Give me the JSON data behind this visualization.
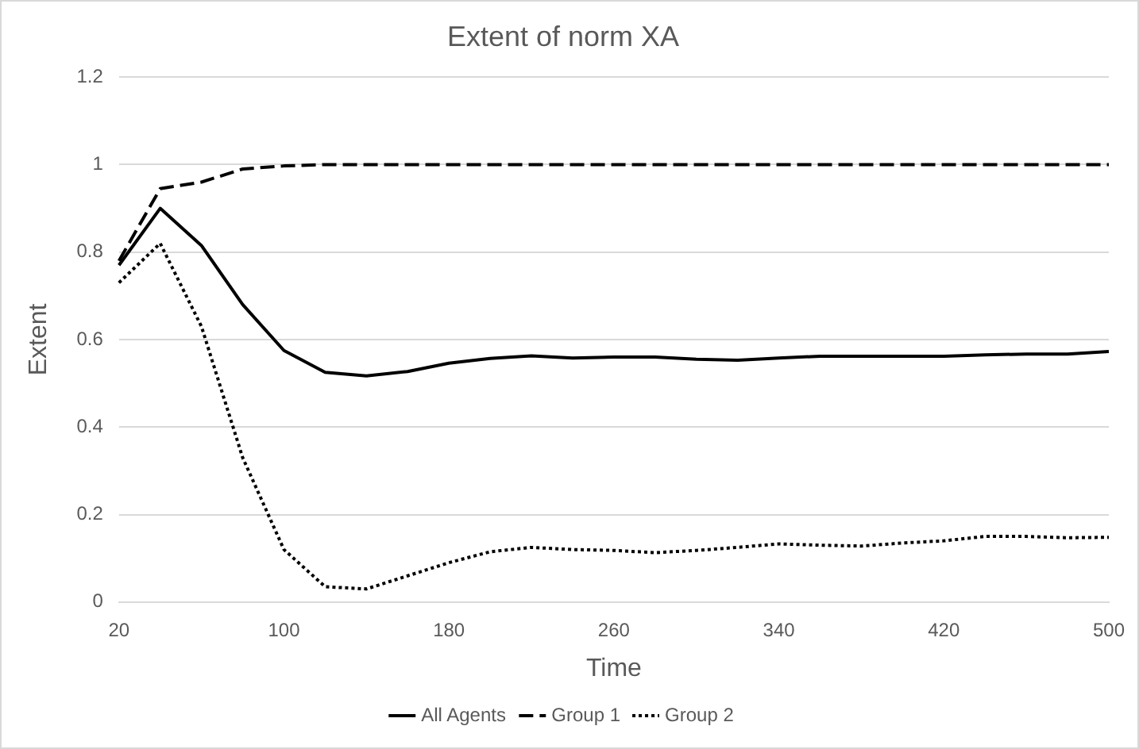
{
  "chart_data": {
    "type": "line",
    "title": "Extent of norm XA",
    "xlabel": "Time",
    "ylabel": "Extent",
    "categories": [
      "20",
      null,
      null,
      null,
      "100",
      null,
      null,
      null,
      "180",
      null,
      null,
      null,
      "260",
      null,
      null,
      null,
      "340",
      null,
      null,
      null,
      "420",
      null,
      null,
      null,
      "500"
    ],
    "series": [
      {
        "name": "All Agents",
        "color": "#000000",
        "line_style": "solid",
        "values": [
          0.77,
          0.9,
          0.815,
          0.68,
          0.575,
          0.525,
          0.517,
          0.527,
          0.546,
          0.557,
          0.563,
          0.558,
          0.56,
          0.56,
          0.555,
          0.553,
          0.558,
          0.562,
          0.562,
          0.562,
          0.562,
          0.565,
          0.567,
          0.567,
          0.573
        ]
      },
      {
        "name": "Group 1",
        "color": "#000000",
        "line_style": "dashed",
        "values": [
          0.78,
          0.945,
          0.96,
          0.99,
          0.997,
          1,
          1,
          1,
          1,
          1,
          1,
          1,
          1,
          1,
          1,
          1,
          1,
          1,
          1,
          1,
          1,
          1,
          1,
          1,
          1
        ]
      },
      {
        "name": "Group 2",
        "color": "#000000",
        "line_style": "dotted",
        "values": [
          0.73,
          0.82,
          0.63,
          0.33,
          0.12,
          0.035,
          0.03,
          0.06,
          0.09,
          0.115,
          0.125,
          0.12,
          0.118,
          0.113,
          0.118,
          0.125,
          0.133,
          0.13,
          0.128,
          0.135,
          0.14,
          0.15,
          0.15,
          0.147,
          0.148
        ]
      }
    ],
    "ylim": [
      0,
      1.2
    ],
    "yticks": [
      0,
      0.2,
      0.4,
      0.6,
      0.8,
      1,
      1.2
    ],
    "grid": "y",
    "legend": "bottom",
    "marker": "none"
  }
}
